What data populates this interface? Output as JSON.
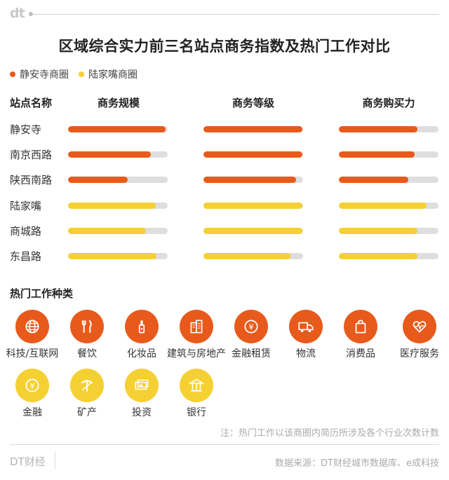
{
  "brand": {
    "logo_text": "dt"
  },
  "title": "区域综合实力前三名站点商务指数及热门工作对比",
  "legend": [
    {
      "label": "静安寺商圈",
      "color": "#E85A1B"
    },
    {
      "label": "陆家嘴商圈",
      "color": "#F5D033"
    }
  ],
  "table_header": {
    "station": "站点名称",
    "columns": [
      "商务规模",
      "商务等级",
      "商务购买力"
    ]
  },
  "chart_data": {
    "type": "bar",
    "orientation": "horizontal",
    "categories": [
      "静安寺",
      "南京西路",
      "陕西南路",
      "陆家嘴",
      "商城路",
      "东昌路"
    ],
    "groups": [
      "静安寺商圈",
      "静安寺商圈",
      "静安寺商圈",
      "陆家嘴商圈",
      "陆家嘴商圈",
      "陆家嘴商圈"
    ],
    "series": [
      {
        "name": "商务规模",
        "values": [
          0.98,
          0.83,
          0.6,
          0.88,
          0.78,
          0.89
        ]
      },
      {
        "name": "商务等级",
        "values": [
          0.99,
          0.99,
          0.93,
          0.99,
          0.99,
          0.87
        ]
      },
      {
        "name": "商务购买力",
        "values": [
          0.79,
          0.76,
          0.7,
          0.88,
          0.79,
          0.79
        ]
      }
    ],
    "ylim": [
      0,
      1
    ],
    "grid": false
  },
  "jobs": {
    "title": "热门工作种类",
    "items": [
      {
        "label": "科技/互联网",
        "icon": "globe-icon",
        "color": "#E85A1B"
      },
      {
        "label": "餐饮",
        "icon": "fork-knife-icon",
        "color": "#E85A1B"
      },
      {
        "label": "化妆品",
        "icon": "cosmetics-icon",
        "color": "#E85A1B"
      },
      {
        "label": "建筑与房地产",
        "icon": "building-icon",
        "color": "#E85A1B"
      },
      {
        "label": "金融租赁",
        "icon": "yuan-coin-icon",
        "color": "#E85A1B"
      },
      {
        "label": "物流",
        "icon": "truck-icon",
        "color": "#E85A1B"
      },
      {
        "label": "消费品",
        "icon": "shopping-bag-icon",
        "color": "#E85A1B"
      },
      {
        "label": "医疗服务",
        "icon": "heartbeat-icon",
        "color": "#E85A1B"
      },
      {
        "label": "金融",
        "icon": "yuan-coin-icon",
        "color": "#F5D033"
      },
      {
        "label": "矿产",
        "icon": "pickaxe-icon",
        "color": "#F5D033"
      },
      {
        "label": "投资",
        "icon": "money-icon",
        "color": "#F5D033"
      },
      {
        "label": "银行",
        "icon": "bank-icon",
        "color": "#F5D033"
      }
    ]
  },
  "note": "注：热门工作以该商圈内简历所涉及各个行业次数计数",
  "footer": {
    "brand": "DT财经",
    "source": "数据来源：DT财经城市数据库、e成科技"
  }
}
